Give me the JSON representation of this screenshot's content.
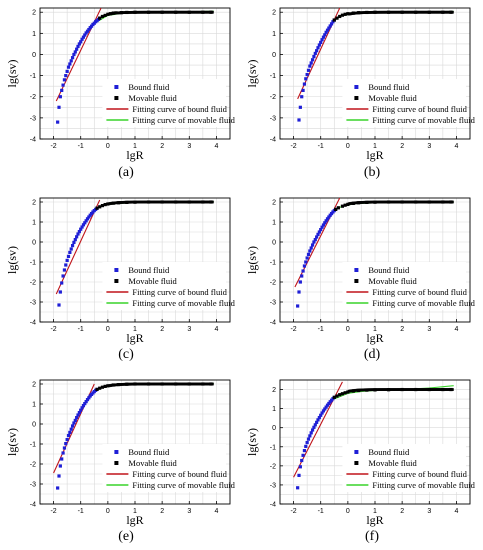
{
  "colors": {
    "bound": "#1f1fd6",
    "movable": "#000000",
    "fit_bound": "#c0141a",
    "fit_movable": "#39d42a",
    "grid": "#d9d9d9"
  },
  "panel_labels": [
    "(a)",
    "(b)",
    "(c)",
    "(d)",
    "(e)",
    "(f)"
  ],
  "chart_data": [
    {
      "type": "scatter",
      "label": "(a)",
      "xlabel": "lgR",
      "ylabel": "lg(sv)",
      "xlim": [
        -2.5,
        4.5
      ],
      "ylim": [
        -4,
        2.2
      ],
      "grid": true,
      "legend_position": "lower-right",
      "xticks": [
        "-2",
        "-1",
        "0",
        "1",
        "2",
        "3",
        "4"
      ],
      "yticks": [
        "-4",
        "-3",
        "-2",
        "-1",
        "0",
        "1",
        "2"
      ],
      "legend": [
        "Bound fluid",
        "Movable fluid",
        "Fitting curve of bound fluid",
        "Fitting curve of movable fluid"
      ],
      "series": [
        {
          "name": "Bound fluid",
          "x": [
            -1.85,
            -1.8,
            -1.75,
            -1.7,
            -1.65,
            -1.6,
            -1.55,
            -1.5,
            -1.45,
            -1.4,
            -1.35,
            -1.3,
            -1.25,
            -1.2,
            -1.15,
            -1.1,
            -1.05,
            -1.0,
            -0.95,
            -0.9,
            -0.85,
            -0.8,
            -0.75,
            -0.7,
            -0.65,
            -0.6,
            -0.55,
            -0.5,
            -0.45,
            -0.4,
            -0.35,
            -0.3
          ],
          "y": [
            -3.2,
            -2.5,
            -2.0,
            -1.7,
            -1.45,
            -1.2,
            -1.0,
            -0.8,
            -0.6,
            -0.45,
            -0.3,
            -0.15,
            0.0,
            0.12,
            0.25,
            0.38,
            0.5,
            0.6,
            0.72,
            0.82,
            0.92,
            1.02,
            1.1,
            1.18,
            1.27,
            1.34,
            1.42,
            1.48,
            1.55,
            1.6,
            1.66,
            1.72
          ]
        },
        {
          "name": "Movable fluid",
          "x": [
            -0.3,
            -0.2,
            -0.1,
            0.0,
            0.1,
            0.2,
            0.3,
            0.5,
            0.7,
            1.0,
            1.5,
            2.0,
            2.5,
            3.0,
            3.5,
            3.8
          ],
          "y": [
            1.72,
            1.8,
            1.85,
            1.9,
            1.93,
            1.96,
            1.97,
            1.98,
            1.99,
            2.0,
            2.0,
            2.0,
            2.0,
            2.0,
            2.0,
            2.0
          ]
        },
        {
          "name": "Fitting curve of bound fluid",
          "x": [
            -1.9,
            -0.25
          ],
          "y": [
            -2.2,
            2.2
          ]
        },
        {
          "name": "Fitting curve of movable fluid",
          "x": [
            -0.4,
            0.0,
            0.5,
            1.0,
            2.0,
            3.0,
            3.9
          ],
          "y": [
            1.55,
            1.85,
            1.95,
            1.98,
            2.0,
            2.02,
            2.05
          ]
        }
      ]
    },
    {
      "type": "scatter",
      "label": "(b)",
      "xlabel": "lgR",
      "ylabel": "lg(sv)",
      "xlim": [
        -2.5,
        4.5
      ],
      "ylim": [
        -4,
        2.2
      ],
      "grid": true,
      "legend_position": "lower-right",
      "xticks": [
        "-2",
        "-1",
        "0",
        "1",
        "2",
        "3",
        "4"
      ],
      "yticks": [
        "-4",
        "-3",
        "-2",
        "-1",
        "0",
        "1",
        "2"
      ],
      "legend": [
        "Bound fluid",
        "Movable fluid",
        "Fitting curve of bound fluid",
        "Fitting curve of movable fluid"
      ],
      "series": [
        {
          "name": "Bound fluid",
          "x": [
            -1.8,
            -1.75,
            -1.7,
            -1.65,
            -1.6,
            -1.55,
            -1.5,
            -1.45,
            -1.4,
            -1.35,
            -1.3,
            -1.25,
            -1.2,
            -1.15,
            -1.1,
            -1.05,
            -1.0,
            -0.95,
            -0.9,
            -0.85,
            -0.8,
            -0.75,
            -0.7,
            -0.65,
            -0.6,
            -0.55,
            -0.5
          ],
          "y": [
            -3.1,
            -2.5,
            -2.0,
            -1.7,
            -1.4,
            -1.15,
            -0.95,
            -0.75,
            -0.55,
            -0.4,
            -0.25,
            -0.1,
            0.05,
            0.18,
            0.32,
            0.45,
            0.57,
            0.7,
            0.82,
            0.93,
            1.05,
            1.15,
            1.25,
            1.35,
            1.45,
            1.55,
            1.63
          ]
        },
        {
          "name": "Movable fluid",
          "x": [
            -0.5,
            -0.4,
            -0.3,
            -0.2,
            -0.1,
            0.0,
            0.2,
            0.4,
            0.7,
            1.0,
            1.5,
            2.0,
            2.5,
            3.0,
            3.5,
            3.8
          ],
          "y": [
            1.63,
            1.72,
            1.8,
            1.86,
            1.9,
            1.93,
            1.96,
            1.98,
            1.99,
            2.0,
            2.0,
            2.0,
            2.0,
            2.0,
            2.0,
            2.0
          ]
        },
        {
          "name": "Fitting curve of bound fluid",
          "x": [
            -1.85,
            -0.3
          ],
          "y": [
            -2.1,
            2.2
          ]
        },
        {
          "name": "Fitting curve of movable fluid",
          "x": [
            -0.6,
            -0.2,
            0.3,
            1.0,
            2.0,
            3.0,
            3.9
          ],
          "y": [
            1.55,
            1.85,
            1.95,
            1.98,
            2.0,
            2.02,
            2.04
          ]
        }
      ]
    },
    {
      "type": "scatter",
      "label": "(c)",
      "xlabel": "lgR",
      "ylabel": "lg(sv)",
      "xlim": [
        -2.5,
        4.5
      ],
      "ylim": [
        -4,
        2.2
      ],
      "grid": true,
      "legend_position": "lower-right",
      "xticks": [
        "-2",
        "-1",
        "0",
        "1",
        "2",
        "3",
        "4"
      ],
      "yticks": [
        "-4",
        "-3",
        "-2",
        "-1",
        "0",
        "1",
        "2"
      ],
      "legend": [
        "Bound fluid",
        "Movable fluid",
        "Fitting curve of bound fluid",
        "Fitting curve of movable fluid"
      ],
      "series": [
        {
          "name": "Bound fluid",
          "x": [
            -1.8,
            -1.75,
            -1.7,
            -1.65,
            -1.6,
            -1.55,
            -1.5,
            -1.45,
            -1.4,
            -1.35,
            -1.3,
            -1.25,
            -1.2,
            -1.15,
            -1.1,
            -1.05,
            -1.0,
            -0.95,
            -0.9,
            -0.85,
            -0.8,
            -0.75,
            -0.7,
            -0.65,
            -0.6,
            -0.55,
            -0.5,
            -0.45,
            -0.4
          ],
          "y": [
            -3.15,
            -2.5,
            -2.05,
            -1.7,
            -1.4,
            -1.15,
            -0.92,
            -0.72,
            -0.52,
            -0.35,
            -0.18,
            -0.02,
            0.12,
            0.26,
            0.4,
            0.52,
            0.64,
            0.75,
            0.86,
            0.96,
            1.06,
            1.16,
            1.25,
            1.34,
            1.42,
            1.5,
            1.57,
            1.63,
            1.69
          ]
        },
        {
          "name": "Movable fluid",
          "x": [
            -0.4,
            -0.3,
            -0.2,
            -0.1,
            0.0,
            0.2,
            0.4,
            0.7,
            1.0,
            1.5,
            2.0,
            2.5,
            3.0,
            3.5,
            3.8
          ],
          "y": [
            1.69,
            1.76,
            1.82,
            1.87,
            1.9,
            1.94,
            1.96,
            1.98,
            1.99,
            2.0,
            2.0,
            2.0,
            2.0,
            2.0,
            2.0
          ]
        },
        {
          "name": "Fitting curve of bound fluid",
          "x": [
            -1.9,
            -0.3
          ],
          "y": [
            -2.6,
            2.1
          ]
        },
        {
          "name": "Fitting curve of movable fluid",
          "x": [
            -0.6,
            -0.2,
            0.3,
            1.0,
            2.0,
            3.0,
            3.9
          ],
          "y": [
            1.5,
            1.82,
            1.93,
            1.97,
            1.99,
            2.0,
            2.02
          ]
        }
      ]
    },
    {
      "type": "scatter",
      "label": "(d)",
      "xlabel": "lgR",
      "ylabel": "lg(sv)",
      "xlim": [
        -2.5,
        4.5
      ],
      "ylim": [
        -4,
        2.2
      ],
      "grid": true,
      "legend_position": "lower-right",
      "xticks": [
        "-2",
        "-1",
        "0",
        "1",
        "2",
        "3",
        "4"
      ],
      "yticks": [
        "-4",
        "-3",
        "-2",
        "-1",
        "0",
        "1",
        "2"
      ],
      "legend": [
        "Bound fluid",
        "Movable fluid",
        "Fitting curve of bound fluid",
        "Fitting curve of movable fluid"
      ],
      "series": [
        {
          "name": "Bound fluid",
          "x": [
            -1.85,
            -1.8,
            -1.75,
            -1.7,
            -1.65,
            -1.6,
            -1.55,
            -1.5,
            -1.45,
            -1.4,
            -1.35,
            -1.3,
            -1.25,
            -1.2,
            -1.15,
            -1.1,
            -1.05,
            -1.0,
            -0.95,
            -0.9,
            -0.85,
            -0.8,
            -0.75,
            -0.7,
            -0.65,
            -0.6,
            -0.55,
            -0.5,
            -0.45
          ],
          "y": [
            -3.2,
            -2.5,
            -2.0,
            -1.7,
            -1.45,
            -1.2,
            -1.0,
            -0.8,
            -0.62,
            -0.45,
            -0.3,
            -0.15,
            0.0,
            0.12,
            0.25,
            0.38,
            0.5,
            0.62,
            0.74,
            0.85,
            0.96,
            1.06,
            1.16,
            1.25,
            1.34,
            1.42,
            1.5,
            1.57,
            1.63
          ]
        },
        {
          "name": "Movable fluid",
          "x": [
            -0.45,
            -0.35,
            -0.2,
            -0.1,
            0.0,
            0.2,
            0.4,
            0.7,
            1.0,
            1.5,
            2.0,
            2.5,
            3.0,
            3.5,
            3.8
          ],
          "y": [
            1.63,
            1.71,
            1.79,
            1.84,
            1.88,
            1.93,
            1.96,
            1.98,
            1.99,
            2.0,
            2.0,
            2.0,
            2.0,
            2.0,
            2.0
          ]
        },
        {
          "name": "Fitting curve of bound fluid",
          "x": [
            -1.95,
            -0.3
          ],
          "y": [
            -2.25,
            2.2
          ]
        },
        {
          "name": "Fitting curve of movable fluid",
          "x": [
            -0.6,
            -0.2,
            0.3,
            1.0,
            2.0,
            3.0,
            3.9
          ],
          "y": [
            1.5,
            1.8,
            1.92,
            1.96,
            1.98,
            2.0,
            2.0
          ]
        }
      ]
    },
    {
      "type": "scatter",
      "label": "(e)",
      "xlabel": "lgR",
      "ylabel": "lg(sv)",
      "xlim": [
        -2.5,
        4.5
      ],
      "ylim": [
        -4,
        2.2
      ],
      "grid": true,
      "legend_position": "lower-right",
      "xticks": [
        "-2",
        "-1",
        "0",
        "1",
        "2",
        "3",
        "4"
      ],
      "yticks": [
        "-4",
        "-3",
        "-2",
        "-1",
        "0",
        "1",
        "2"
      ],
      "legend": [
        "Bound fluid",
        "Movable fluid",
        "Fitting curve of bound fluid",
        "Fitting curve of movable fluid"
      ],
      "series": [
        {
          "name": "Bound fluid",
          "x": [
            -1.85,
            -1.8,
            -1.75,
            -1.7,
            -1.65,
            -1.6,
            -1.55,
            -1.5,
            -1.45,
            -1.4,
            -1.35,
            -1.3,
            -1.25,
            -1.2,
            -1.15,
            -1.1,
            -1.05,
            -1.0,
            -0.95,
            -0.9,
            -0.85,
            -0.8,
            -0.75,
            -0.7,
            -0.65,
            -0.6,
            -0.55,
            -0.5,
            -0.45,
            -0.4
          ],
          "y": [
            -3.2,
            -2.6,
            -2.1,
            -1.75,
            -1.45,
            -1.2,
            -0.98,
            -0.78,
            -0.58,
            -0.42,
            -0.26,
            -0.1,
            0.05,
            0.18,
            0.32,
            0.45,
            0.57,
            0.69,
            0.81,
            0.92,
            1.02,
            1.12,
            1.22,
            1.31,
            1.4,
            1.48,
            1.55,
            1.62,
            1.68,
            1.73
          ]
        },
        {
          "name": "Movable fluid",
          "x": [
            -0.4,
            -0.3,
            -0.2,
            -0.1,
            0.0,
            0.2,
            0.4,
            0.7,
            1.0,
            1.5,
            2.0,
            2.5,
            3.0,
            3.5,
            3.8
          ],
          "y": [
            1.73,
            1.79,
            1.84,
            1.88,
            1.91,
            1.95,
            1.97,
            1.99,
            2.0,
            2.0,
            2.0,
            2.0,
            2.0,
            2.0,
            2.0
          ]
        },
        {
          "name": "Fitting curve of bound fluid",
          "x": [
            -2.0,
            -0.5
          ],
          "y": [
            -2.45,
            2.0
          ]
        },
        {
          "name": "Fitting curve of movable fluid",
          "x": [
            -0.6,
            -0.2,
            0.3,
            1.0,
            2.0,
            3.0,
            3.9
          ],
          "y": [
            1.52,
            1.83,
            1.94,
            1.98,
            2.0,
            2.02,
            2.03
          ]
        }
      ]
    },
    {
      "type": "scatter",
      "label": "(f)",
      "xlabel": "lgR",
      "ylabel": "lg(sv)",
      "xlim": [
        -2.5,
        4.5
      ],
      "ylim": [
        -4,
        2.5
      ],
      "grid": true,
      "legend_position": "lower-right",
      "xticks": [
        "-2",
        "-1",
        "0",
        "1",
        "2",
        "3",
        "4"
      ],
      "yticks": [
        "-4",
        "-3",
        "-2",
        "-1",
        "0",
        "1",
        "2"
      ],
      "legend": [
        "Bound fluid",
        "Movable fluid",
        "Fitting curve of bound fluid",
        "Fitting curve of movable fluid"
      ],
      "series": [
        {
          "name": "Bound fluid",
          "x": [
            -1.85,
            -1.8,
            -1.75,
            -1.7,
            -1.65,
            -1.6,
            -1.55,
            -1.5,
            -1.45,
            -1.4,
            -1.35,
            -1.3,
            -1.25,
            -1.2,
            -1.15,
            -1.1,
            -1.05,
            -1.0,
            -0.95,
            -0.9,
            -0.85,
            -0.8,
            -0.75,
            -0.7,
            -0.65,
            -0.6,
            -0.55,
            -0.5
          ],
          "y": [
            -3.15,
            -2.5,
            -2.05,
            -1.72,
            -1.45,
            -1.2,
            -0.98,
            -0.78,
            -0.6,
            -0.43,
            -0.27,
            -0.12,
            0.02,
            0.15,
            0.28,
            0.41,
            0.53,
            0.65,
            0.77,
            0.88,
            0.98,
            1.08,
            1.18,
            1.27,
            1.36,
            1.44,
            1.52,
            1.59
          ]
        },
        {
          "name": "Movable fluid",
          "x": [
            -0.5,
            -0.4,
            -0.3,
            -0.2,
            -0.1,
            0.0,
            0.2,
            0.4,
            0.7,
            1.0,
            1.5,
            2.0,
            2.5,
            3.0,
            3.5,
            3.8
          ],
          "y": [
            1.59,
            1.66,
            1.73,
            1.78,
            1.83,
            1.87,
            1.92,
            1.95,
            1.97,
            1.98,
            1.99,
            2.0,
            2.0,
            2.0,
            2.0,
            2.0
          ]
        },
        {
          "name": "Fitting curve of bound fluid",
          "x": [
            -2.0,
            -0.2
          ],
          "y": [
            -2.6,
            2.4
          ]
        },
        {
          "name": "Fitting curve of movable fluid",
          "x": [
            -0.6,
            0.0,
            0.5,
            1.0,
            2.0,
            3.0,
            3.9
          ],
          "y": [
            1.45,
            1.8,
            1.9,
            1.95,
            2.0,
            2.08,
            2.2
          ]
        }
      ]
    }
  ]
}
